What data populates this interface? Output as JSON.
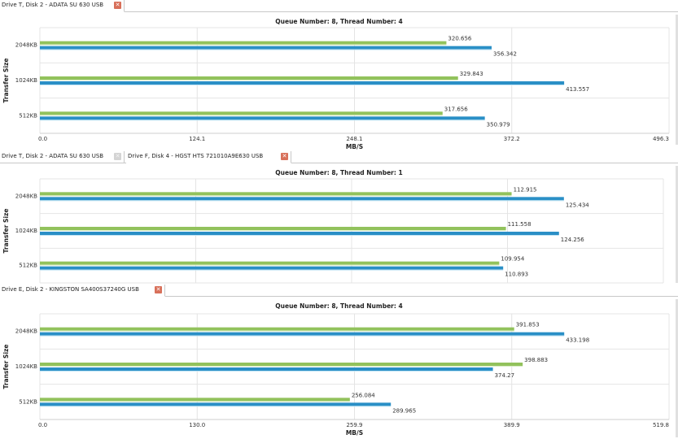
{
  "tabs": {
    "panel1": [
      {
        "label": "Drive T, Disk 2 - ADATA SU 630 USB",
        "active": true
      }
    ],
    "panel2": [
      {
        "label": "Drive T, Disk 2 - ADATA SU 630 USB",
        "active": false
      },
      {
        "label": "Drive F, Disk 4 - HGST HTS 721010A9E630 USB",
        "active": true
      }
    ],
    "panel3": [
      {
        "label": "Drive E, Disk 2 - KINGSTON SA400S37240G USB",
        "active": true
      }
    ]
  },
  "colors": {
    "series1": "#92c25c",
    "series2": "#2a8fc6",
    "grid": "#e4e4e4",
    "close_active": "#d8705a",
    "close_inactive": "#d4d4d4"
  },
  "chart_data": [
    {
      "type": "bar",
      "orientation": "horizontal",
      "title": "Queue Number: 8, Thread Number: 4",
      "xlabel": "MB/S",
      "ylabel": "Transfer Size",
      "categories": [
        "2048KB",
        "1024KB",
        "512KB"
      ],
      "series": [
        {
          "name": "series-green",
          "values": [
            320.656,
            329.843,
            317.656
          ]
        },
        {
          "name": "series-blue",
          "values": [
            356.342,
            413.557,
            350.979
          ]
        }
      ],
      "xlim": [
        0,
        496.3
      ],
      "xticks": [
        "0.0",
        "124.1",
        "248.1",
        "372.2",
        "496.3"
      ],
      "grid": true,
      "show_xaxis": true
    },
    {
      "type": "bar",
      "orientation": "horizontal",
      "title": "Queue Number: 8, Thread Number: 1",
      "xlabel": "",
      "ylabel": "Transfer Size",
      "categories": [
        "2048KB",
        "1024KB",
        "512KB"
      ],
      "series": [
        {
          "name": "series-green",
          "values": [
            112.915,
            111.558,
            109.954
          ]
        },
        {
          "name": "series-blue",
          "values": [
            125.434,
            124.256,
            110.893
          ]
        }
      ],
      "xlim": [
        0,
        150.6
      ],
      "xticks": [],
      "grid": true,
      "show_xaxis": false
    },
    {
      "type": "bar",
      "orientation": "horizontal",
      "title": "Queue Number: 8, Thread Number: 4",
      "xlabel": "MB/S",
      "ylabel": "Transfer Size",
      "categories": [
        "2048KB",
        "1024KB",
        "512KB"
      ],
      "series": [
        {
          "name": "series-green",
          "values": [
            391.853,
            398.883,
            256.084
          ]
        },
        {
          "name": "series-blue",
          "values": [
            433.198,
            374.27,
            289.965
          ]
        }
      ],
      "xlim": [
        0,
        519.8
      ],
      "xticks": [
        "0.0",
        "130.0",
        "259.9",
        "389.9",
        "519.8"
      ],
      "grid": true,
      "show_xaxis": true
    }
  ]
}
